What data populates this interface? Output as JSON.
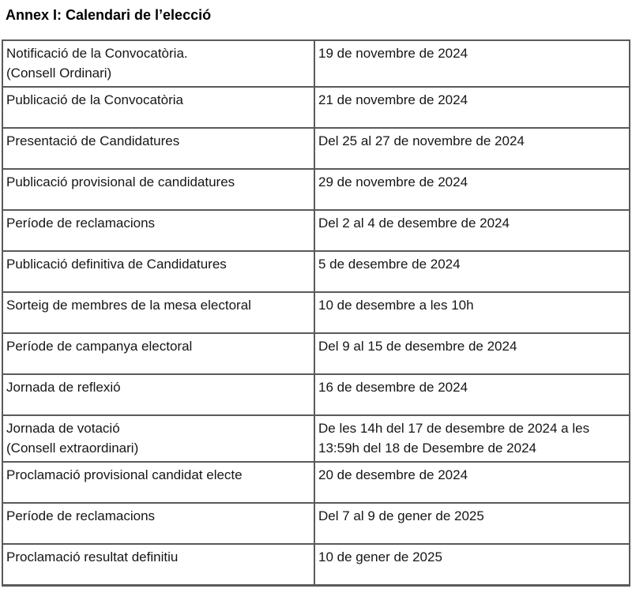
{
  "page": {
    "title": "Annex I: Calendari de l’elecció"
  },
  "calendar_table": {
    "columns": [
      "event",
      "date"
    ],
    "rows": [
      {
        "event": "Notificació de la Convocatòria.\n(Consell Ordinari)",
        "date": "19 de novembre de 2024"
      },
      {
        "event": "Publicació de la Convocatòria",
        "date": "21 de novembre de 2024"
      },
      {
        "event": "Presentació de Candidatures",
        "date": "Del 25 al 27 de novembre de 2024"
      },
      {
        "event": "Publicació provisional de candidatures",
        "date": "29 de novembre de 2024"
      },
      {
        "event": "Període de reclamacions",
        "date": "Del 2 al 4 de desembre de 2024"
      },
      {
        "event": "Publicació definitiva de Candidatures",
        "date": "5 de desembre de 2024"
      },
      {
        "event": "Sorteig de membres de la mesa electoral",
        "date": "10 de desembre a les 10h"
      },
      {
        "event": "Període de campanya electoral",
        "date": "Del 9 al 15 de desembre de 2024"
      },
      {
        "event": "Jornada de reflexió",
        "date": "16 de desembre de 2024"
      },
      {
        "event": "Jornada de votació\n(Consell extraordinari)",
        "date": "De les 14h del 17 de desembre de 2024 a les\n13:59h del 18 de Desembre de 2024"
      },
      {
        "event": "Proclamació provisional candidat electe",
        "date": "20 de desembre de 2024"
      },
      {
        "event": "Període de reclamacions",
        "date": "Del 7 al 9 de gener de 2025"
      },
      {
        "event": "Proclamació resultat definitiu",
        "date": "10 de gener de 2025"
      }
    ]
  }
}
